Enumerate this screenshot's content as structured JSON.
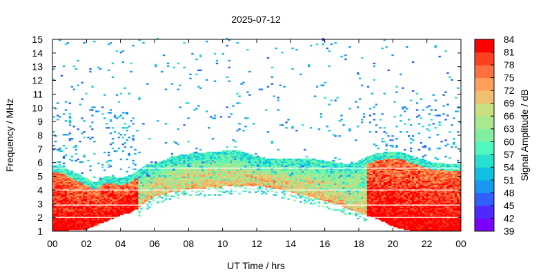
{
  "chart_data": {
    "type": "heatmap",
    "title": "2025-07-12",
    "xlabel": "UT Time / hrs",
    "ylabel": "Frequency / MHz",
    "colorbar_label": "Signal Amplitude / dB",
    "xlim": [
      0,
      24
    ],
    "ylim": [
      1,
      15
    ],
    "x_ticks": [
      "00",
      "02",
      "04",
      "06",
      "08",
      "10",
      "12",
      "14",
      "16",
      "18",
      "20",
      "22",
      "00"
    ],
    "y_ticks": [
      "1",
      "2",
      "3",
      "4",
      "5",
      "6",
      "7",
      "8",
      "9",
      "10",
      "11",
      "12",
      "13",
      "14",
      "15"
    ],
    "colorbar_ticks": [
      "39",
      "42",
      "45",
      "48",
      "51",
      "54",
      "57",
      "60",
      "63",
      "66",
      "69",
      "72",
      "75",
      "78",
      "81",
      "84"
    ],
    "colorbar_range": [
      39,
      84
    ],
    "colorscale": [
      "#7b00ff",
      "#5028ff",
      "#3060ff",
      "#1898f0",
      "#10c0e0",
      "#28e0d0",
      "#50f8c0",
      "#80f0a0",
      "#a8e890",
      "#c8e080",
      "#f0c070",
      "#ffa058",
      "#ff7040",
      "#ff4020",
      "#ff0000"
    ],
    "grid": false,
    "foF2_profile_mhz": [
      [
        0.0,
        5.3
      ],
      [
        0.5,
        5.2
      ],
      [
        1.0,
        4.9
      ],
      [
        1.5,
        4.6
      ],
      [
        2.0,
        4.3
      ],
      [
        2.5,
        4.0
      ],
      [
        3.0,
        4.4
      ],
      [
        3.5,
        4.5
      ],
      [
        4.0,
        4.3
      ],
      [
        4.5,
        4.5
      ],
      [
        5.0,
        4.9
      ],
      [
        5.5,
        5.3
      ],
      [
        6.0,
        5.4
      ],
      [
        6.5,
        5.6
      ],
      [
        7.0,
        5.9
      ],
      [
        7.5,
        6.0
      ],
      [
        8.0,
        6.1
      ],
      [
        8.5,
        6.1
      ],
      [
        9.0,
        6.2
      ],
      [
        9.5,
        6.2
      ],
      [
        10.0,
        6.3
      ],
      [
        10.5,
        6.3
      ],
      [
        11.0,
        6.3
      ],
      [
        11.5,
        6.1
      ],
      [
        12.0,
        5.9
      ],
      [
        12.5,
        5.8
      ],
      [
        13.0,
        5.7
      ],
      [
        13.5,
        5.7
      ],
      [
        14.0,
        5.7
      ],
      [
        14.5,
        5.7
      ],
      [
        15.0,
        5.7
      ],
      [
        15.5,
        5.7
      ],
      [
        16.0,
        5.6
      ],
      [
        16.5,
        5.5
      ],
      [
        17.0,
        5.4
      ],
      [
        17.5,
        5.3
      ],
      [
        18.0,
        5.6
      ],
      [
        18.5,
        5.9
      ],
      [
        19.0,
        6.1
      ],
      [
        19.5,
        6.2
      ],
      [
        20.0,
        6.3
      ],
      [
        20.5,
        6.2
      ],
      [
        21.0,
        6.0
      ],
      [
        21.5,
        5.8
      ],
      [
        22.0,
        5.6
      ],
      [
        22.5,
        5.4
      ],
      [
        23.0,
        5.4
      ],
      [
        23.5,
        5.3
      ],
      [
        24.0,
        5.3
      ]
    ],
    "lower_cutoff_mhz": [
      [
        0.0,
        1.0
      ],
      [
        1.0,
        1.0
      ],
      [
        2.0,
        1.1
      ],
      [
        3.0,
        1.6
      ],
      [
        4.0,
        2.1
      ],
      [
        4.5,
        2.3
      ],
      [
        5.0,
        2.6
      ],
      [
        5.5,
        3.1
      ],
      [
        6.0,
        3.5
      ],
      [
        7.0,
        3.8
      ],
      [
        8.0,
        4.0
      ],
      [
        9.0,
        4.1
      ],
      [
        10.0,
        4.2
      ],
      [
        11.0,
        4.3
      ],
      [
        12.0,
        4.3
      ],
      [
        13.0,
        4.1
      ],
      [
        14.0,
        3.8
      ],
      [
        15.0,
        3.5
      ],
      [
        16.0,
        3.2
      ],
      [
        17.0,
        2.8
      ],
      [
        18.0,
        2.3
      ],
      [
        19.0,
        1.9
      ],
      [
        20.0,
        1.3
      ],
      [
        21.0,
        1.0
      ],
      [
        24.0,
        1.0
      ]
    ]
  }
}
